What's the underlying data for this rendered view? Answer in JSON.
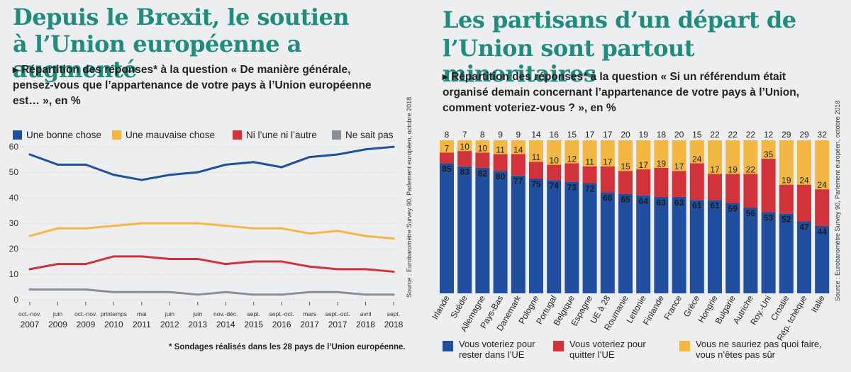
{
  "left": {
    "title_line1": "Depuis le Brexit, le soutien",
    "title_line2": "à l’Union européenne a augmenté",
    "subtitle_line1": "▸ Répartition des réponses* à la question « De manière générale,",
    "subtitle_line2": "pensez-vous que l’appartenance de votre pays à l’Union européenne",
    "subtitle_line3": "est… », en %",
    "footnote": "* Sondages réalisés dans les 28 pays de l’Union européenne.",
    "source": "Source : Eurobaromètre Survey 90, Parlement européen, octobre 2018"
  },
  "right": {
    "title_line1": "Les partisans d’un départ de",
    "title_line2": "l’Union sont partout minoritaires",
    "subtitle_line1": "▸ Répartition des réponses* à la question « Si un référendum était",
    "subtitle_line2": "organisé demain concernant l’appartenance de votre pays à l’Union,",
    "subtitle_line3": "comment voteriez-vous ? », en %",
    "source": "Source : Eurobaromètre Survey 90, Parlement européen, octobre 2018",
    "legend": [
      {
        "line1": "Vous voteriez pour",
        "line2": "rester dans l’UE",
        "color": "#1f4f9e"
      },
      {
        "line1": "Vous voteriez pour",
        "line2": "quitter l’UE",
        "color": "#d2333a"
      },
      {
        "line1": "Vous ne sauriez pas quoi faire,",
        "line2": "vous n’êtes pas sûr",
        "color": "#f2b843"
      }
    ]
  },
  "chart_data": [
    {
      "type": "line",
      "x_labels": [
        [
          "oct.-nov.",
          "2007"
        ],
        [
          "juin",
          "2009"
        ],
        [
          "oct.-nov.",
          "2009"
        ],
        [
          "printemps",
          "2010"
        ],
        [
          "mai",
          "2011"
        ],
        [
          "juin",
          "2012"
        ],
        [
          "juin",
          "2013"
        ],
        [
          "nov.-déc.",
          "2014"
        ],
        [
          "sept.",
          "2015"
        ],
        [
          "sept.-oct.",
          "2016"
        ],
        [
          "mars",
          "2017"
        ],
        [
          "sept.-oct.",
          "2017"
        ],
        [
          "avril",
          "2018"
        ],
        [
          "sept.",
          "2018"
        ]
      ],
      "yticks": [
        0,
        10,
        20,
        30,
        40,
        50,
        60
      ],
      "ylim": [
        0,
        62
      ],
      "series": [
        {
          "name": "Une bonne chose",
          "color": "#1f4f9e",
          "values": [
            57,
            53,
            53,
            49,
            47,
            49,
            50,
            53,
            54,
            52,
            56,
            57,
            59,
            60
          ]
        },
        {
          "name": "Une mauvaise chose",
          "color": "#f2b843",
          "values": [
            25,
            28,
            28,
            29,
            30,
            30,
            30,
            29,
            28,
            28,
            26,
            27,
            25,
            24
          ]
        },
        {
          "name": "Ni l’une ni l’autre",
          "color": "#d2333a",
          "values": [
            12,
            14,
            14,
            17,
            17,
            16,
            16,
            14,
            15,
            15,
            13,
            12,
            12,
            11
          ]
        },
        {
          "name": "Ne sait pas",
          "color": "#8a8f99",
          "values": [
            4,
            4,
            4,
            3,
            3,
            3,
            2,
            3,
            2,
            2,
            3,
            3,
            2,
            2
          ]
        }
      ]
    },
    {
      "type": "bar",
      "stacked": true,
      "categories": [
        "Irlande",
        "Suède",
        "Allemagne",
        "Pays-Bas",
        "Danemark",
        "Pologne",
        "Portugal",
        "Belgique",
        "Espagne",
        "UE à 28",
        "Roumanie",
        "Lettonie",
        "Finlande",
        "France",
        "Grèce",
        "Hongrie",
        "Bulgarie",
        "Autriche",
        "Roy.-Uni",
        "Croatie",
        "Rép. tchèque",
        "Italie"
      ],
      "series": [
        {
          "name": "Vous voteriez pour rester dans l’UE",
          "color": "#1f4f9e",
          "values": [
            85,
            83,
            82,
            80,
            77,
            75,
            74,
            73,
            72,
            66,
            65,
            64,
            63,
            63,
            61,
            61,
            59,
            56,
            53,
            52,
            47,
            44
          ]
        },
        {
          "name": "Vous voteriez pour quitter l’UE",
          "color": "#d2333a",
          "values": [
            7,
            10,
            10,
            11,
            14,
            11,
            10,
            12,
            11,
            17,
            15,
            17,
            19,
            17,
            24,
            17,
            19,
            22,
            35,
            19,
            24,
            24
          ]
        },
        {
          "name": "Vous ne sauriez pas quoi faire, vous n’êtes pas sûr",
          "color": "#f2b843",
          "values": [
            8,
            7,
            8,
            9,
            9,
            14,
            16,
            15,
            17,
            17,
            20,
            19,
            18,
            20,
            15,
            22,
            22,
            22,
            12,
            29,
            29,
            32
          ]
        }
      ]
    }
  ]
}
